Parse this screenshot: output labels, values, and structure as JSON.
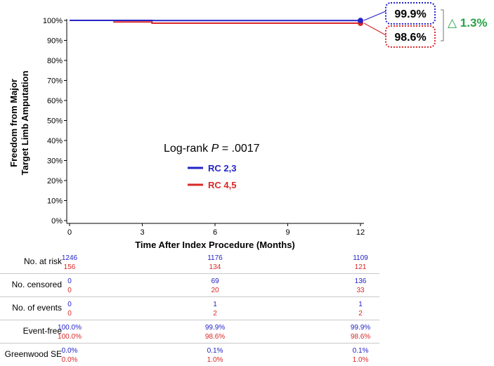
{
  "chart_data": {
    "type": "line",
    "step": true,
    "ylabel_line1": "Freedom from Major",
    "ylabel_line2": "Target Limb Amputation",
    "xlabel": "Time After Index Procedure (Months)",
    "xlim": [
      0,
      12
    ],
    "ylim": [
      0,
      100
    ],
    "x_ticks": [
      "0",
      "3",
      "6",
      "9",
      "12"
    ],
    "x_tick_values": [
      0,
      3,
      6,
      9,
      12
    ],
    "y_ticks": [
      "0%",
      "10%",
      "20%",
      "30%",
      "40%",
      "50%",
      "60%",
      "70%",
      "80%",
      "90%",
      "100%"
    ],
    "y_tick_values": [
      0,
      10,
      20,
      30,
      40,
      50,
      60,
      70,
      80,
      90,
      100
    ],
    "grid": false,
    "series": [
      {
        "name": "RC 2,3",
        "color": "#2323c8",
        "points": [
          [
            0,
            100
          ],
          [
            3.4,
            100
          ],
          [
            3.4,
            99.9
          ],
          [
            12,
            99.9
          ]
        ]
      },
      {
        "name": "RC 4,5",
        "color": "#d82828",
        "points": [
          [
            1.8,
            99.2
          ],
          [
            3.4,
            99.2
          ],
          [
            3.4,
            98.6
          ],
          [
            12,
            98.6
          ]
        ]
      }
    ],
    "annotation_pvalue_prefix": "Log-rank ",
    "annotation_pvalue_p": "P",
    "annotation_pvalue_suffix": " = .0017",
    "callouts": [
      {
        "label": "99.9%",
        "color": "#2323c8"
      },
      {
        "label": "98.6%",
        "color": "#d82828"
      }
    ],
    "delta_label": "△ 1.3%",
    "delta_color": "#2aa34a"
  },
  "risk_table": {
    "columns_x": [
      0,
      6,
      12
    ],
    "rows": [
      {
        "label": "No. at risk",
        "blue": [
          "1246",
          "1176",
          "1109"
        ],
        "red": [
          "156",
          "134",
          "121"
        ]
      },
      {
        "label": "No. censored",
        "blue": [
          "0",
          "69",
          "136"
        ],
        "red": [
          "0",
          "20",
          "33"
        ]
      },
      {
        "label": "No. of events",
        "blue": [
          "0",
          "1",
          "1"
        ],
        "red": [
          "0",
          "2",
          "2"
        ]
      },
      {
        "label": "Event-free",
        "blue": [
          "100.0%",
          "99.9%",
          "99.9%"
        ],
        "red": [
          "100.0%",
          "98.6%",
          "98.6%"
        ]
      },
      {
        "label": "Greenwood SE",
        "blue": [
          "0.0%",
          "0.1%",
          "0.1%"
        ],
        "red": [
          "0.0%",
          "1.0%",
          "1.0%"
        ]
      }
    ]
  }
}
